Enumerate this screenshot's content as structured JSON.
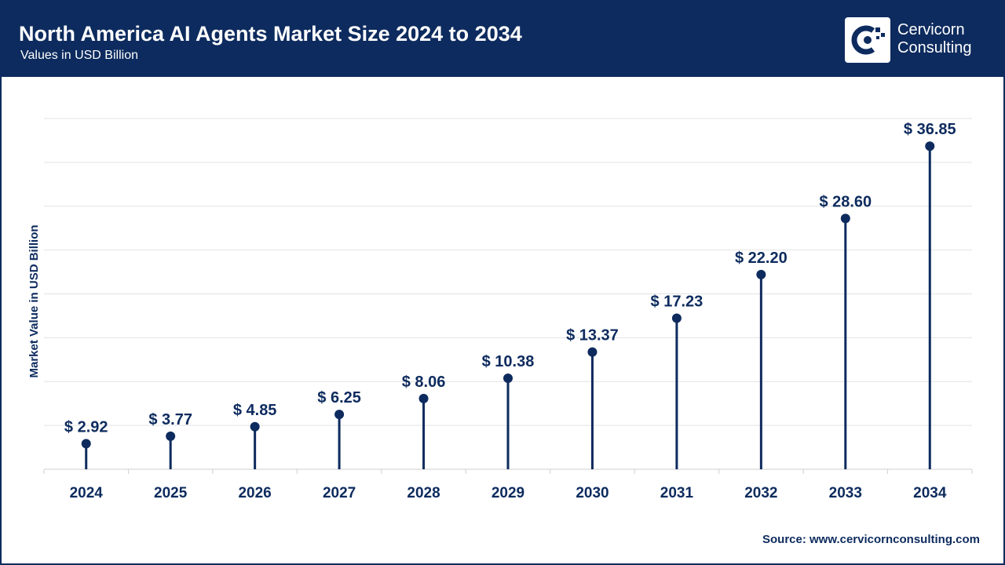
{
  "header": {
    "title": "North America AI Agents Market Size 2024 to 2034",
    "subtitle": "Values in USD Billion"
  },
  "logo": {
    "line1": "Cervicorn",
    "line2": "Consulting",
    "icon": "cervicorn-logo-icon"
  },
  "colors": {
    "brand": "#0d2b5e",
    "grid": "#e3e3e3",
    "text": "#0d2b5e"
  },
  "source": "Source: www.cervicornconsulting.com",
  "chart_data": {
    "type": "lollipop",
    "title": "North America AI Agents Market Size 2024 to 2034",
    "xlabel": "",
    "ylabel": "Market Value in USD Billion",
    "categories": [
      "2024",
      "2025",
      "2026",
      "2027",
      "2028",
      "2029",
      "2030",
      "2031",
      "2032",
      "2033",
      "2034"
    ],
    "values": [
      2.92,
      3.77,
      4.85,
      6.25,
      8.06,
      10.38,
      13.37,
      17.23,
      22.2,
      28.6,
      36.85
    ],
    "labels": [
      "$ 2.92",
      "$ 3.77",
      "$ 4.85",
      "$ 6.25",
      "$ 8.06",
      "$ 10.38",
      "$ 13.37",
      "$ 17.23",
      "$ 22.20",
      "$ 28.60",
      "$ 36.85"
    ],
    "ylim": [
      0,
      40
    ],
    "grid": true,
    "legend": "none"
  }
}
